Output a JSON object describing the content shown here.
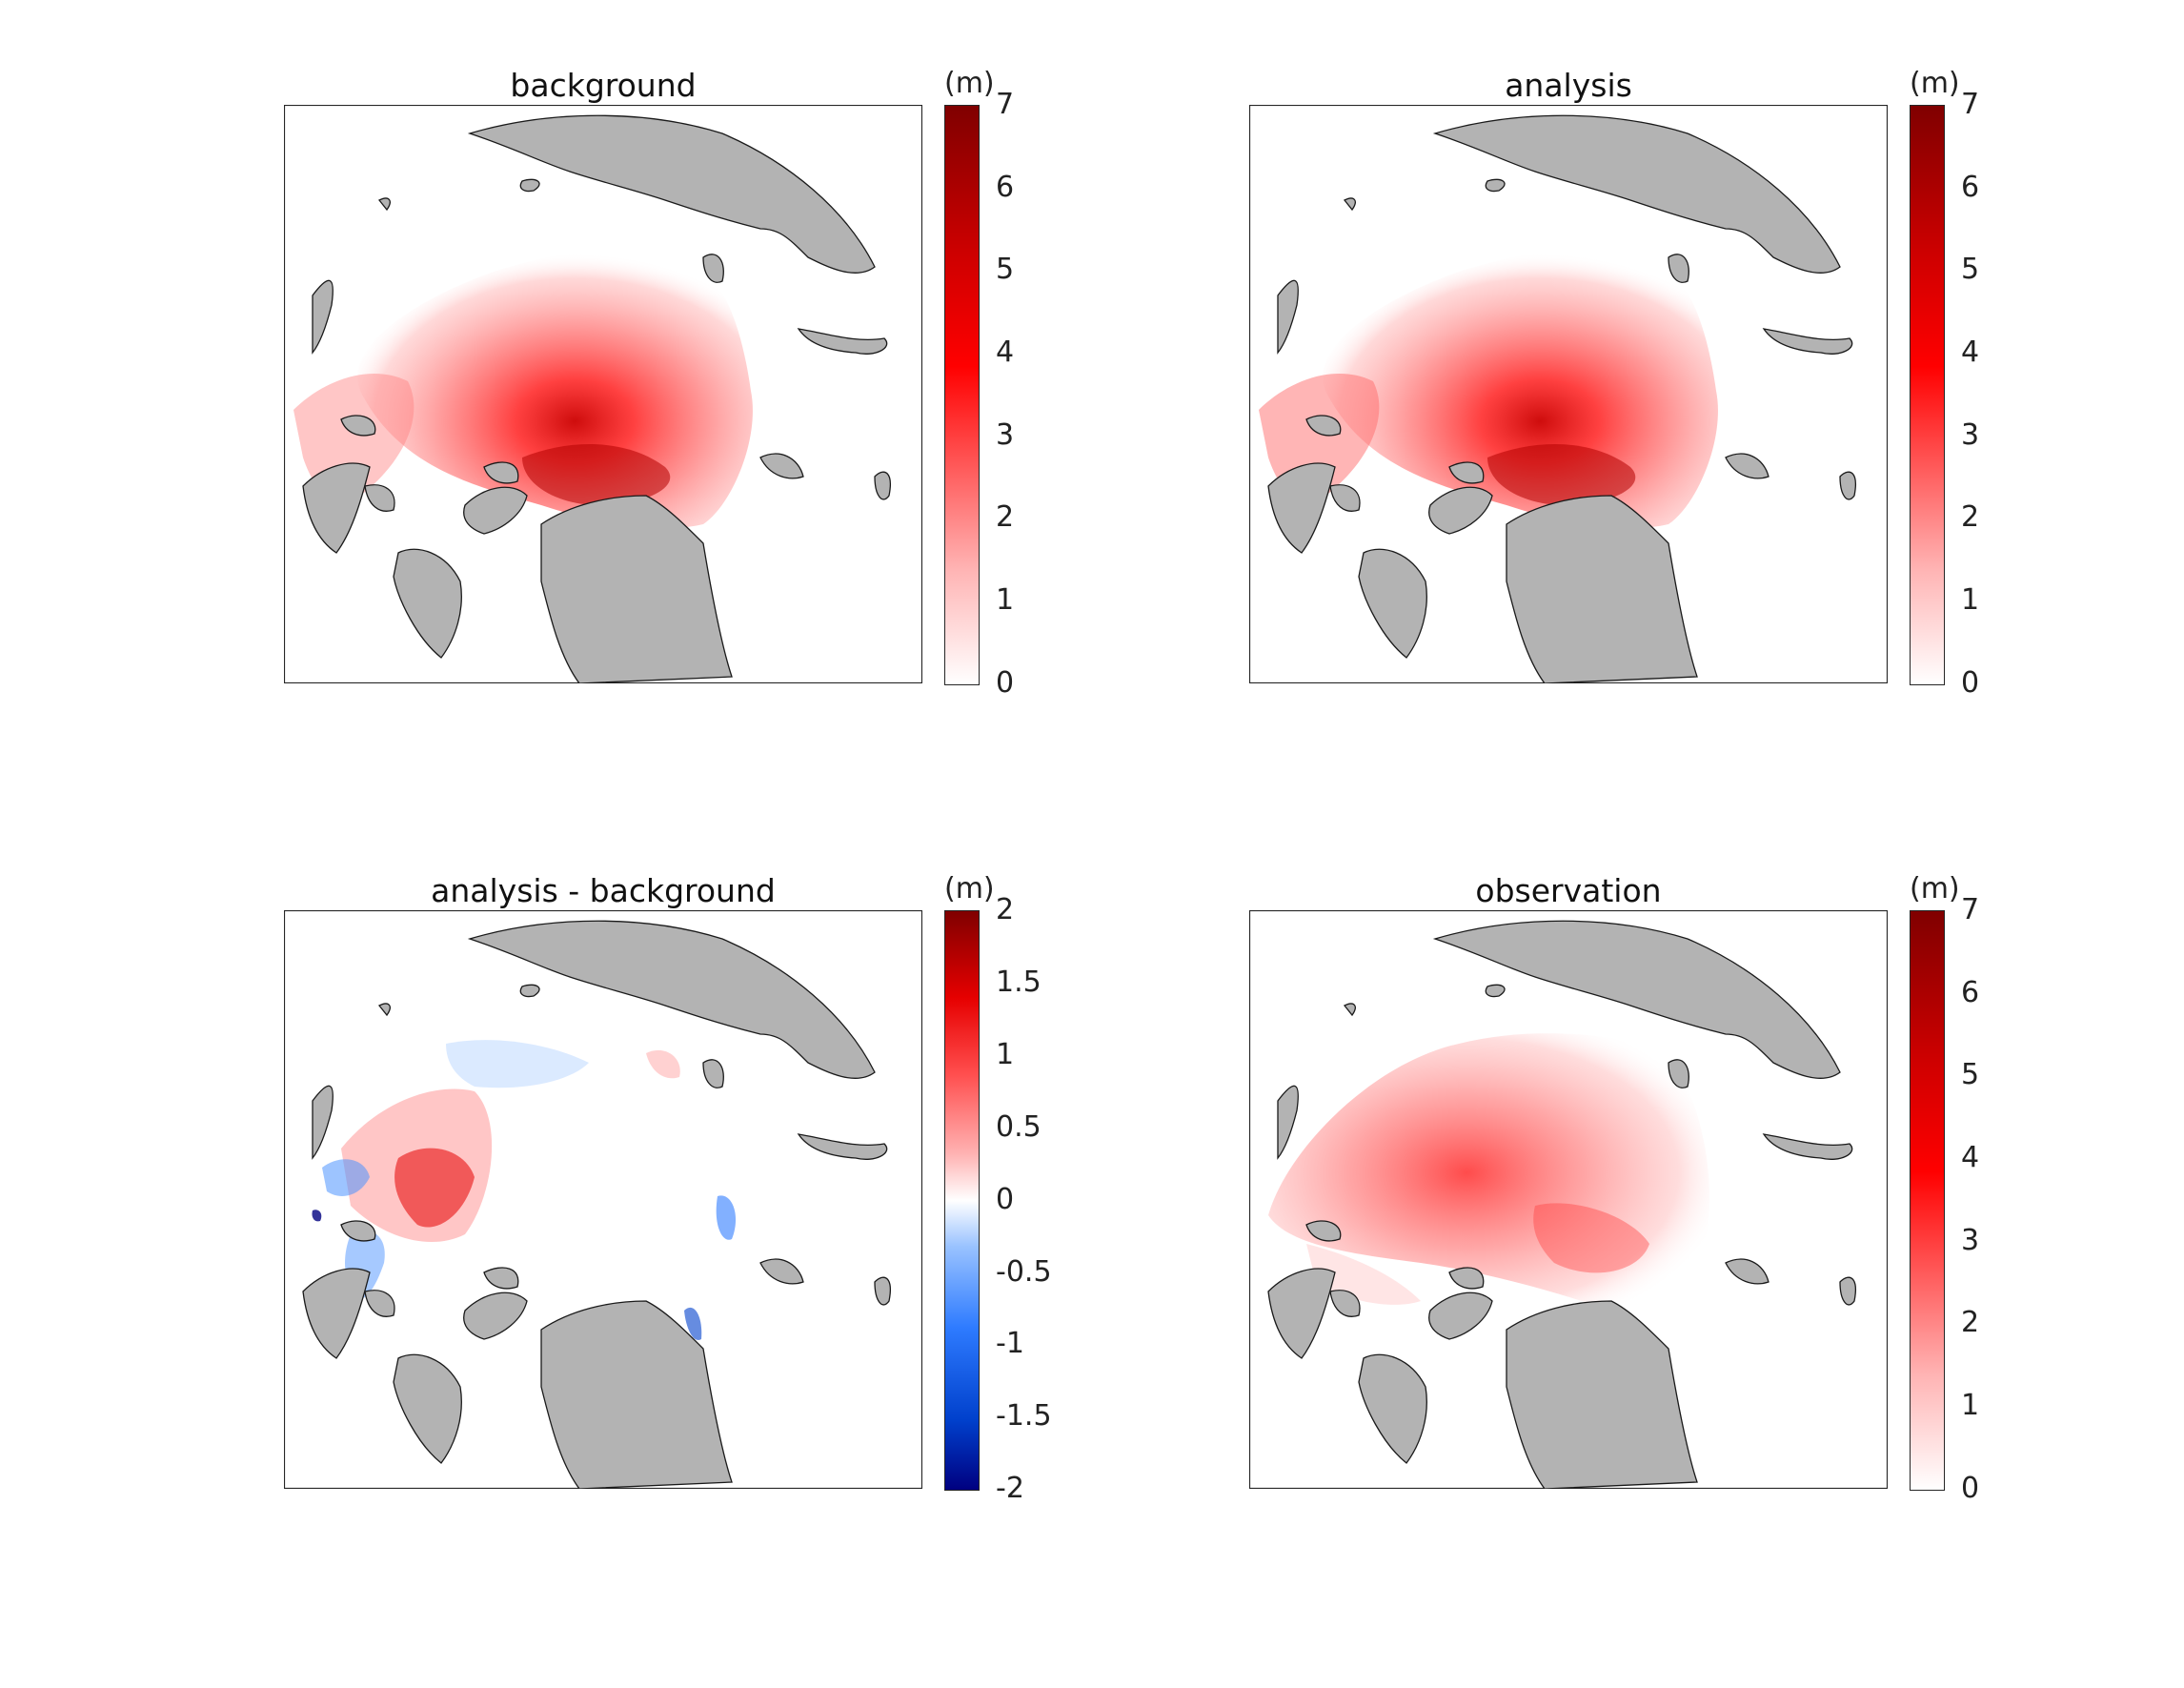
{
  "units_label": "(m)",
  "colors": {
    "land": "#b3b3b3",
    "coast": "#1a1a1a",
    "frame": "#262626",
    "reds": [
      "#ffffff",
      "#ffb3b3",
      "#ff4d4d",
      "#ff0000",
      "#cc0000",
      "#800000"
    ],
    "blues": [
      "#ffffff",
      "#99c2ff",
      "#2e7bff",
      "#0040cc",
      "#000080"
    ]
  },
  "panels": [
    {
      "title": "background",
      "colorbar": {
        "type": "sequential-red",
        "min": 0,
        "max": 7,
        "ticks": [
          "7",
          "6",
          "5",
          "4",
          "3",
          "2",
          "1",
          "0"
        ]
      },
      "field": "thickness-background"
    },
    {
      "title": "analysis",
      "colorbar": {
        "type": "sequential-red",
        "min": 0,
        "max": 7,
        "ticks": [
          "7",
          "6",
          "5",
          "4",
          "3",
          "2",
          "1",
          "0"
        ]
      },
      "field": "thickness-analysis"
    },
    {
      "title": "analysis - background",
      "colorbar": {
        "type": "diverging-blue-red",
        "min": -2,
        "max": 2,
        "ticks": [
          "2",
          "1.5",
          "1",
          "0.5",
          "0",
          "-0.5",
          "-1",
          "-1.5",
          "-2"
        ]
      },
      "field": "increment"
    },
    {
      "title": "observation",
      "colorbar": {
        "type": "sequential-red",
        "min": 0,
        "max": 7,
        "ticks": [
          "7",
          "6",
          "5",
          "4",
          "3",
          "2",
          "1",
          "0"
        ]
      },
      "field": "thickness-observation"
    }
  ]
}
